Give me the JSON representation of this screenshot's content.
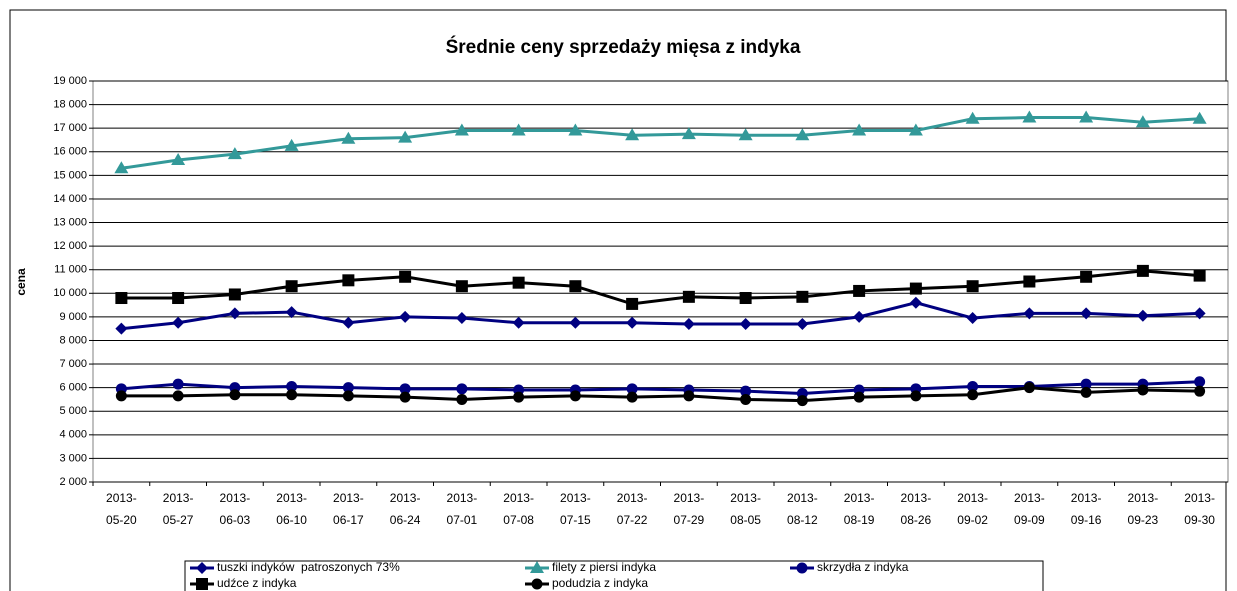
{
  "chart_data": {
    "type": "line",
    "title": "Średnie ceny sprzedaży mięsa z indyka",
    "y_label": "cena",
    "categories": [
      "2013-05-20",
      "2013-05-27",
      "2013-06-03",
      "2013-06-10",
      "2013-06-17",
      "2013-06-24",
      "2013-07-01",
      "2013-07-08",
      "2013-07-15",
      "2013-07-22",
      "2013-07-29",
      "2013-08-05",
      "2013-08-12",
      "2013-08-19",
      "2013-08-26",
      "2013-09-02",
      "2013-09-09",
      "2013-09-16",
      "2013-09-23",
      "2013-09-30"
    ],
    "ylim": [
      2000,
      19000
    ],
    "yticks": [
      {
        "value": 2000,
        "label": "2 000"
      },
      {
        "value": 3000,
        "label": "3 000"
      },
      {
        "value": 4000,
        "label": "4 000"
      },
      {
        "value": 5000,
        "label": "5 000"
      },
      {
        "value": 6000,
        "label": "6 000"
      },
      {
        "value": 7000,
        "label": "7 000"
      },
      {
        "value": 8000,
        "label": "8 000"
      },
      {
        "value": 9000,
        "label": "9 000"
      },
      {
        "value": 10000,
        "label": "10 000"
      },
      {
        "value": 11000,
        "label": "11 000"
      },
      {
        "value": 12000,
        "label": "12 000"
      },
      {
        "value": 13000,
        "label": "13 000"
      },
      {
        "value": 14000,
        "label": "14 000"
      },
      {
        "value": 15000,
        "label": "15 000"
      },
      {
        "value": 16000,
        "label": "16 000"
      },
      {
        "value": 17000,
        "label": "17 000"
      },
      {
        "value": 18000,
        "label": "18 000"
      },
      {
        "value": 19000,
        "label": "19 000"
      }
    ],
    "grid": true,
    "series": [
      {
        "name": "tuszki indyków  patroszonych 73%",
        "color": "#000080",
        "marker": "diamond",
        "values": [
          8500,
          8750,
          9150,
          9200,
          8750,
          9000,
          8950,
          8750,
          8750,
          8750,
          8700,
          8700,
          8700,
          9000,
          9600,
          8950,
          9150,
          9150,
          9050,
          9150
        ]
      },
      {
        "name": "filety z piersi indyka",
        "color": "#339999",
        "marker": "triangle",
        "values": [
          15300,
          15650,
          15900,
          16250,
          16550,
          16600,
          16900,
          16900,
          16900,
          16700,
          16750,
          16700,
          16700,
          16900,
          16900,
          17400,
          17450,
          17450,
          17250,
          17400
        ]
      },
      {
        "name": "skrzydła z indyka",
        "color": "#000080",
        "marker": "circle",
        "values": [
          5950,
          6150,
          6000,
          6050,
          6000,
          5950,
          5950,
          5900,
          5900,
          5950,
          5900,
          5850,
          5750,
          5900,
          5950,
          6050,
          6050,
          6150,
          6150,
          6250
        ]
      },
      {
        "name": "udźce z indyka",
        "color": "#000000",
        "marker": "square",
        "values": [
          9800,
          9800,
          9950,
          10300,
          10550,
          10700,
          10300,
          10450,
          10300,
          9550,
          9850,
          9800,
          9850,
          10100,
          10200,
          10300,
          10500,
          10700,
          10950,
          10750
        ]
      },
      {
        "name": "podudzia z indyka",
        "color": "#000000",
        "marker": "circle",
        "values": [
          5650,
          5650,
          5700,
          5700,
          5650,
          5600,
          5500,
          5600,
          5650,
          5600,
          5650,
          5500,
          5450,
          5600,
          5650,
          5700,
          6000,
          5800,
          5900,
          5850
        ]
      }
    ]
  }
}
